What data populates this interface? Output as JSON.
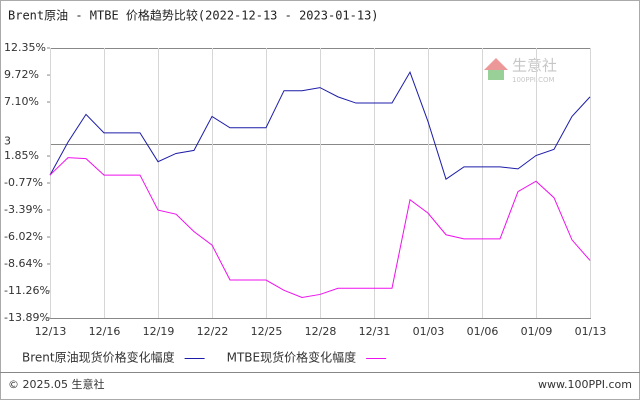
{
  "chart_data": {
    "type": "line",
    "title": "Brent原油 - MTBE 价格趋势比较(2022-12-13 - 2023-01-13)",
    "categories": [
      "12/13",
      null,
      null,
      "12/16",
      null,
      null,
      "12/19",
      null,
      null,
      "12/22",
      null,
      null,
      "12/25",
      null,
      null,
      "12/28",
      null,
      null,
      "12/31",
      null,
      null,
      "01/03",
      null,
      null,
      "01/06",
      null,
      null,
      "01/09",
      null,
      null,
      "01/13"
    ],
    "series": [
      {
        "name": "Brent原油现货价格变化幅度",
        "color": "#1c1ca8",
        "values": [
          0.0,
          3.2,
          5.9,
          4.1,
          4.1,
          4.1,
          1.3,
          2.1,
          2.4,
          5.7,
          4.6,
          4.6,
          4.6,
          8.2,
          8.2,
          8.5,
          7.6,
          7.0,
          7.0,
          7.0,
          10.0,
          5.2,
          -0.4,
          0.8,
          0.8,
          0.8,
          0.6,
          1.9,
          2.5,
          5.7,
          7.6
        ]
      },
      {
        "name": "MTBE现货价格变化幅度",
        "color": "#ee11ee",
        "values": [
          0.0,
          1.7,
          1.6,
          0.0,
          0.0,
          0.0,
          -3.4,
          -3.8,
          -5.5,
          -6.8,
          -10.2,
          -10.2,
          -10.2,
          -11.2,
          -11.9,
          -11.6,
          -11.0,
          -11.0,
          -11.0,
          -11.0,
          -2.4,
          -3.7,
          -5.8,
          -6.2,
          -6.2,
          -6.2,
          -1.6,
          -0.6,
          -2.2,
          -6.3,
          -8.3
        ]
      }
    ],
    "ylim": [
      -13.89,
      12.35
    ],
    "yticks": [
      {
        "value": 12.35,
        "label": "12.35%"
      },
      {
        "value": 9.72,
        "label": "9.72%"
      },
      {
        "value": 7.1,
        "label": "7.10%"
      },
      {
        "value": 1.85,
        "label": "1.85%"
      },
      {
        "value": -0.77,
        "label": "-0.77%"
      },
      {
        "value": -3.39,
        "label": "-3.39%"
      },
      {
        "value": -6.02,
        "label": "-6.02%"
      },
      {
        "value": -8.64,
        "label": "-8.64%"
      },
      {
        "value": -11.26,
        "label": "-11.26%"
      },
      {
        "value": -13.89,
        "label": "-13.89%"
      }
    ],
    "ref_line": 3,
    "grid": "x",
    "watermark": "生意社",
    "watermark_sub": "100PPI.COM",
    "source": "© 2025.05 生意社",
    "website": "www.100PPI.com"
  }
}
